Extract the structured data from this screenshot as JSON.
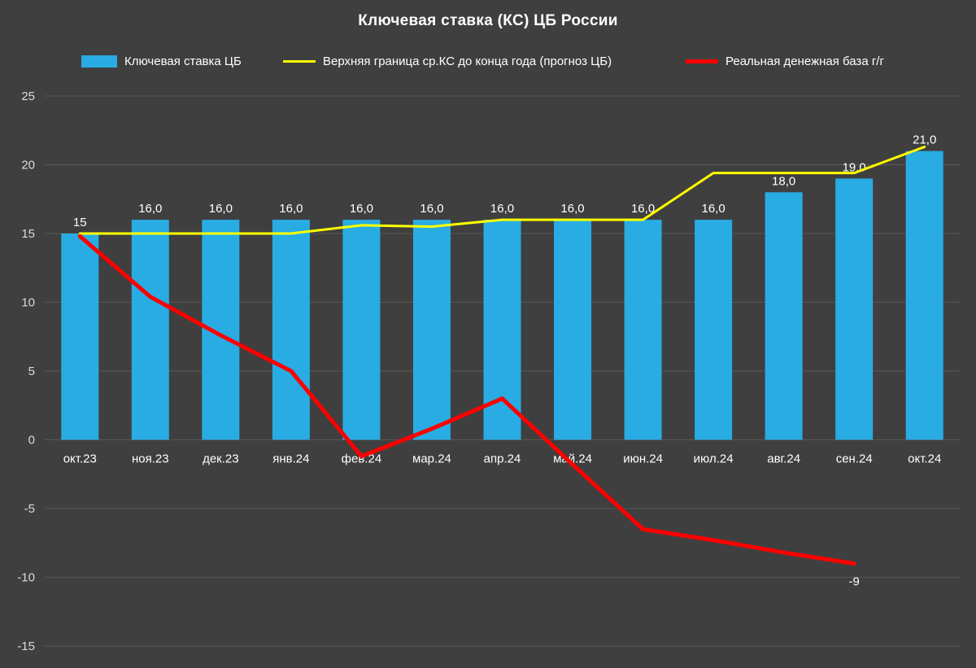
{
  "title": "Ключевая ставка (КС) ЦБ России",
  "legend": [
    {
      "label": "Ключевая ставка ЦБ",
      "type": "bar",
      "color": "#29ACE3"
    },
    {
      "label": "Верхняя граница ср.КС до конца года (прогноз ЦБ)",
      "type": "line",
      "color": "#FFFF00"
    },
    {
      "label": "Реальная денежная база г/г",
      "type": "line",
      "color": "#FF0000"
    }
  ],
  "chart_data": {
    "type": "bar",
    "title": "Ключевая ставка (КС) ЦБ России",
    "categories": [
      "окт.23",
      "ноя.23",
      "дек.23",
      "янв.24",
      "фев.24",
      "мар.24",
      "апр.24",
      "май.24",
      "июн.24",
      "июл.24",
      "авг.24",
      "сен.24",
      "окт.24"
    ],
    "series": [
      {
        "name": "Ключевая ставка ЦБ",
        "type": "bar",
        "color": "#29ACE3",
        "values": [
          15,
          16,
          16,
          16,
          16,
          16,
          16,
          16,
          16,
          16,
          18,
          19,
          21
        ],
        "labels": [
          "15",
          "16,0",
          "16,0",
          "16,0",
          "16,0",
          "16,0",
          "16,0",
          "16,0",
          "16,0",
          "16,0",
          "18,0",
          "19,0",
          "21,0"
        ]
      },
      {
        "name": "Верхняя граница ср.КС до конца года (прогноз ЦБ)",
        "type": "line",
        "color": "#FFFF00",
        "values": [
          15,
          15,
          15,
          15,
          15.6,
          15.5,
          16,
          16,
          16,
          19.4,
          19.4,
          19.4,
          21.3
        ]
      },
      {
        "name": "Реальная денежная база г/г",
        "type": "line",
        "color": "#FF0000",
        "values": [
          14.8,
          10.4,
          7.6,
          5,
          -1.2,
          0.8,
          3,
          -1.8,
          -6.5,
          -7.3,
          -8.2,
          -9,
          null
        ],
        "end_label": "-9"
      }
    ],
    "xlabel": "",
    "ylabel": "",
    "ylim": [
      -15,
      25
    ],
    "ytick_step": 5,
    "ytick_labels": [
      "25",
      "20",
      "15",
      "10",
      "5",
      "0",
      "-5",
      "-10",
      "-15"
    ],
    "grid": true,
    "legend_position": "top"
  },
  "colors": {
    "background": "#3F3F3F",
    "grid": "#575757",
    "text": "#FFFFFF",
    "tick_text": "#DCDCDC",
    "bar": "#29ACE3",
    "forecast_line": "#FFFF00",
    "money_base_line": "#FF0000"
  }
}
